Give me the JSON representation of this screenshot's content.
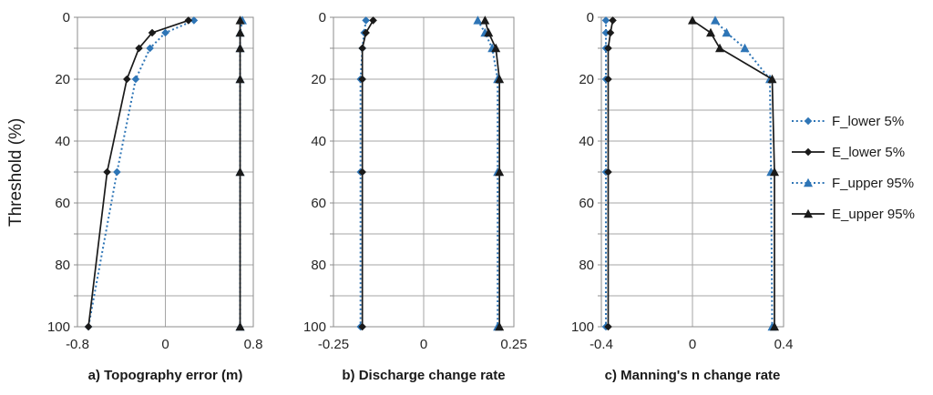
{
  "colors": {
    "blue": "#2E75B6",
    "black": "#1A1A1A",
    "grid": "#A6A6A6",
    "frame": "#8C8C8C",
    "text": "#262626"
  },
  "y_axis": {
    "label": "Threshold (%)",
    "min": 0,
    "max": 100,
    "grid_step": 10,
    "tick_values": [
      0,
      20,
      40,
      60,
      80,
      100
    ],
    "tick_labels": [
      "0",
      "20",
      "40",
      "60",
      "80",
      "100"
    ]
  },
  "legend": [
    {
      "key": "f-lower",
      "label": "F_lower 5%",
      "color_key": "blue",
      "line": "dotted",
      "marker": "diamond"
    },
    {
      "key": "e-lower",
      "label": "E_lower 5%",
      "color_key": "black",
      "line": "solid",
      "marker": "diamond"
    },
    {
      "key": "f-upper",
      "label": "F_upper 95%",
      "color_key": "blue",
      "line": "dotted",
      "marker": "triangle"
    },
    {
      "key": "e-upper",
      "label": "E_upper 95%",
      "color_key": "black",
      "line": "solid",
      "marker": "triangle"
    }
  ],
  "chart_data": [
    {
      "type": "line",
      "title": "a) Topography error (m)",
      "ylabel": "Threshold (%)",
      "xlim": [
        -0.8,
        0.8
      ],
      "xtick_values": [
        -0.8,
        0,
        0.8
      ],
      "xtick_labels": [
        "-0.8",
        "0",
        "0.8"
      ],
      "thresholds": [
        1,
        5,
        10,
        20,
        50,
        100
      ],
      "grid": true,
      "legend_position": "right-of-figure",
      "series": [
        {
          "name": "F_lower 5%",
          "values": [
            0.26,
            0.0,
            -0.14,
            -0.27,
            -0.44,
            -0.7
          ]
        },
        {
          "name": "E_lower 5%",
          "values": [
            0.21,
            -0.12,
            -0.24,
            -0.35,
            -0.53,
            -0.7
          ]
        },
        {
          "name": "F_upper 95%",
          "values": [
            0.7,
            0.68,
            0.68,
            0.68,
            0.68,
            0.68
          ]
        },
        {
          "name": "E_upper 95%",
          "values": [
            0.68,
            0.68,
            0.68,
            0.68,
            0.68,
            0.68
          ]
        }
      ]
    },
    {
      "type": "line",
      "title": "b) Discharge change rate",
      "ylabel": "Threshold (%)",
      "xlim": [
        -0.25,
        0.25
      ],
      "xtick_values": [
        -0.25,
        0,
        0.25
      ],
      "xtick_labels": [
        "-0.25",
        "0",
        "0.25"
      ],
      "thresholds": [
        1,
        5,
        10,
        20,
        50,
        100
      ],
      "grid": true,
      "series": [
        {
          "name": "F_lower 5%",
          "values": [
            -0.16,
            -0.165,
            -0.17,
            -0.175,
            -0.175,
            -0.175
          ]
        },
        {
          "name": "E_lower 5%",
          "values": [
            -0.14,
            -0.16,
            -0.17,
            -0.17,
            -0.17,
            -0.17
          ]
        },
        {
          "name": "F_upper 95%",
          "values": [
            0.15,
            0.17,
            0.19,
            0.205,
            0.205,
            0.205
          ]
        },
        {
          "name": "E_upper 95%",
          "values": [
            0.17,
            0.18,
            0.2,
            0.21,
            0.21,
            0.21
          ]
        }
      ]
    },
    {
      "type": "line",
      "title": "c) Manning's n change rate",
      "ylabel": "Threshold (%)",
      "xlim": [
        -0.4,
        0.4
      ],
      "xtick_values": [
        -0.4,
        0,
        0.4
      ],
      "xtick_labels": [
        "-0.4",
        "0",
        "0.4"
      ],
      "thresholds": [
        1,
        5,
        10,
        20,
        50,
        100
      ],
      "grid": true,
      "series": [
        {
          "name": "F_lower 5%",
          "values": [
            -0.38,
            -0.38,
            -0.38,
            -0.38,
            -0.38,
            -0.38
          ]
        },
        {
          "name": "E_lower 5%",
          "values": [
            -0.35,
            -0.36,
            -0.37,
            -0.37,
            -0.37,
            -0.37
          ]
        },
        {
          "name": "F_upper 95%",
          "values": [
            0.1,
            0.15,
            0.23,
            0.34,
            0.345,
            0.35
          ]
        },
        {
          "name": "E_upper 95%",
          "values": [
            0.0,
            0.08,
            0.12,
            0.35,
            0.36,
            0.36
          ]
        }
      ]
    }
  ]
}
